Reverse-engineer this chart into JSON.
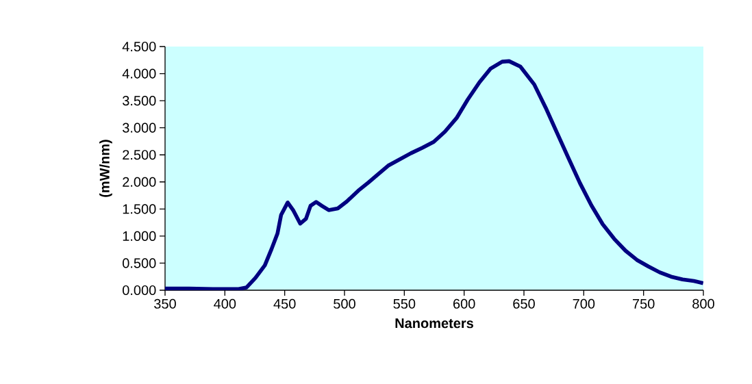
{
  "chart_data": {
    "type": "line",
    "xlabel": "Nanometers",
    "ylabel": "(mW/nm)",
    "series": [
      {
        "color": "#000080",
        "x": [
          350,
          370,
          390,
          410.7,
          418,
          425.6,
          433.4,
          439,
          444,
          447,
          452.5,
          457.3,
          463,
          467.8,
          471.6,
          476.3,
          481,
          486.8,
          494.4,
          502,
          511.6,
          520,
          536.5,
          555.5,
          565,
          574.6,
          584,
          593.7,
          603,
          612.8,
          622,
          631.8,
          637.6,
          647,
          658.6,
          668.2,
          677.6,
          687.2,
          696.8,
          706.3,
          715.8,
          725.4,
          734.9,
          744.4,
          754,
          763.5,
          773,
          782.6,
          792.1,
          799.8
        ],
        "values": [
          0.03,
          0.03,
          0.02,
          0.02,
          0.05,
          0.23,
          0.46,
          0.76,
          1.05,
          1.39,
          1.62,
          1.47,
          1.23,
          1.32,
          1.56,
          1.63,
          1.56,
          1.48,
          1.51,
          1.64,
          1.84,
          1.99,
          2.3,
          2.53,
          2.63,
          2.74,
          2.93,
          3.18,
          3.52,
          3.84,
          4.09,
          4.22,
          4.23,
          4.13,
          3.8,
          3.37,
          2.91,
          2.44,
          1.98,
          1.57,
          1.22,
          0.95,
          0.73,
          0.56,
          0.44,
          0.33,
          0.25,
          0.2,
          0.17,
          0.13
        ]
      }
    ],
    "xlim": [
      350,
      800
    ],
    "ylim": [
      0,
      4.5
    ],
    "xticks": [
      350,
      400,
      450,
      500,
      550,
      600,
      650,
      700,
      750,
      800
    ],
    "yticks": [
      {
        "value": 0,
        "label": "0.000"
      },
      {
        "value": 0.5,
        "label": "0.500"
      },
      {
        "value": 1,
        "label": "1.000"
      },
      {
        "value": 1.5,
        "label": "1.500"
      },
      {
        "value": 2,
        "label": "2.000"
      },
      {
        "value": 2.5,
        "label": "2.500"
      },
      {
        "value": 3,
        "label": "3.000"
      },
      {
        "value": 3.5,
        "label": "3.500"
      },
      {
        "value": 4,
        "label": "4.000"
      },
      {
        "value": 4.5,
        "label": "4.500"
      }
    ],
    "marker": "none",
    "line_style": "solid"
  }
}
